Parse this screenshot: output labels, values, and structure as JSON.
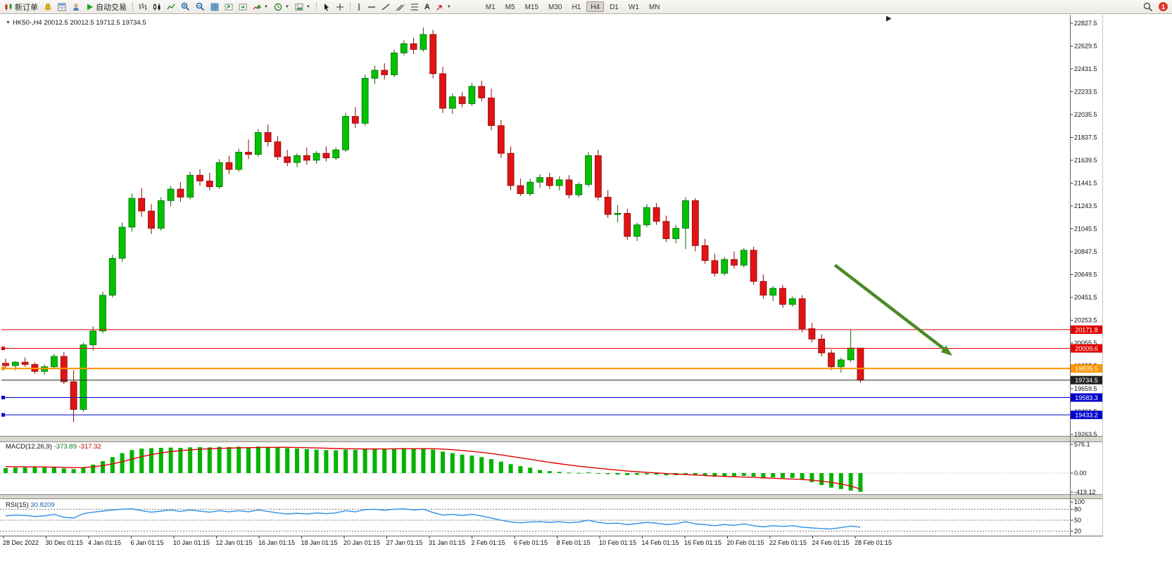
{
  "toolbar": {
    "new_order": "新订单",
    "auto_trading": "自动交易",
    "text_tool": "A",
    "timeframes": [
      "M1",
      "M5",
      "M15",
      "M30",
      "H1",
      "H4",
      "D1",
      "W1",
      "MN"
    ],
    "active_timeframe": "H4",
    "notification": "1"
  },
  "chart": {
    "symbol": "HK50-",
    "period": "H4",
    "ohlc_text": "20012.5 20012.5 19712.5 19734.5",
    "price_axis": [
      "22827.5",
      "22629.5",
      "22431.5",
      "22233.5",
      "22035.5",
      "21837.5",
      "21639.5",
      "21441.5",
      "21243.5",
      "21045.5",
      "20847.5",
      "20649.5",
      "20451.5",
      "20253.5",
      "20055.5",
      "19857.5",
      "19659.5",
      "19461.5",
      "19263.5"
    ],
    "price_lines": [
      {
        "price": 20171.8,
        "label": "20171.8",
        "color": "#e00000",
        "width": 1,
        "handle": false,
        "name": "resistance-line-red-1"
      },
      {
        "price": 20009.6,
        "label": "20009.6",
        "color": "#e00000",
        "width": 1,
        "handle": true,
        "name": "resistance-line-red-2"
      },
      {
        "price": 19835.5,
        "label": "19835.5",
        "color": "#ff9500",
        "width": 2,
        "handle": true,
        "name": "support-line-orange"
      },
      {
        "price": 19734.5,
        "label": "19734.5",
        "color": "#202020",
        "width": 1,
        "handle": false,
        "name": "current-price-line"
      },
      {
        "price": 19583.3,
        "label": "19583.3",
        "color": "#0000cc",
        "width": 1,
        "handle": true,
        "name": "support-line-blue-1"
      },
      {
        "price": 19433.2,
        "label": "19433.2",
        "color": "#0000cc",
        "width": 1,
        "handle": true,
        "name": "support-line-blue-2"
      }
    ],
    "time_axis": [
      "28 Dec 2022",
      "30 Dec 01:15",
      "4 Jan 01:15",
      "6 Jan 01:15",
      "10 Jan 01:15",
      "12 Jan 01:15",
      "16 Jan 01:15",
      "18 Jan 01:15",
      "20 Jan 01:15",
      "27 Jan 01:15",
      "31 Jan 01:15",
      "2 Feb 01:15",
      "6 Feb 01:15",
      "8 Feb 01:15",
      "10 Feb 01:15",
      "14 Feb 01:15",
      "16 Feb 01:15",
      "20 Feb 01:15",
      "22 Feb 01:15",
      "24 Feb 01:15",
      "28 Feb 01:15"
    ],
    "colors": {
      "bull": "#00C200",
      "bull_border": "#0a6a0a",
      "bear": "#E01414",
      "bear_border": "#8a0808",
      "macd_hist": "#00B400",
      "macd_signal": "#E00000",
      "rsi": "#2F8FE8",
      "arrow": "#4C8A28"
    },
    "candles": [
      [
        19880,
        19920,
        19840,
        19860
      ],
      [
        19860,
        19900,
        19820,
        19890
      ],
      [
        19890,
        19930,
        19850,
        19870
      ],
      [
        19870,
        19890,
        19790,
        19810
      ],
      [
        19810,
        19870,
        19780,
        19850
      ],
      [
        19850,
        19960,
        19830,
        19940
      ],
      [
        19940,
        19980,
        19700,
        19720
      ],
      [
        19720,
        19820,
        19370,
        19480
      ],
      [
        19480,
        20060,
        19460,
        20040
      ],
      [
        20040,
        20200,
        19990,
        20160
      ],
      [
        20160,
        20500,
        20140,
        20470
      ],
      [
        20470,
        20820,
        20450,
        20790
      ],
      [
        20790,
        21100,
        20760,
        21060
      ],
      [
        21060,
        21350,
        21020,
        21310
      ],
      [
        21310,
        21400,
        21150,
        21200
      ],
      [
        21200,
        21260,
        21000,
        21050
      ],
      [
        21050,
        21320,
        21030,
        21290
      ],
      [
        21290,
        21420,
        21240,
        21390
      ],
      [
        21390,
        21450,
        21280,
        21320
      ],
      [
        21320,
        21540,
        21300,
        21510
      ],
      [
        21510,
        21560,
        21420,
        21460
      ],
      [
        21460,
        21530,
        21380,
        21410
      ],
      [
        21410,
        21650,
        21390,
        21620
      ],
      [
        21620,
        21680,
        21520,
        21560
      ],
      [
        21560,
        21740,
        21540,
        21710
      ],
      [
        21710,
        21820,
        21650,
        21690
      ],
      [
        21690,
        21910,
        21670,
        21880
      ],
      [
        21880,
        21950,
        21760,
        21800
      ],
      [
        21800,
        21850,
        21640,
        21670
      ],
      [
        21670,
        21730,
        21590,
        21620
      ],
      [
        21620,
        21700,
        21580,
        21680
      ],
      [
        21680,
        21750,
        21600,
        21640
      ],
      [
        21640,
        21720,
        21610,
        21700
      ],
      [
        21700,
        21760,
        21630,
        21660
      ],
      [
        21660,
        21750,
        21640,
        21730
      ],
      [
        21730,
        22050,
        21710,
        22020
      ],
      [
        22020,
        22100,
        21920,
        21960
      ],
      [
        21960,
        22380,
        21940,
        22350
      ],
      [
        22350,
        22460,
        22300,
        22420
      ],
      [
        22420,
        22480,
        22340,
        22380
      ],
      [
        22380,
        22600,
        22360,
        22570
      ],
      [
        22570,
        22680,
        22550,
        22650
      ],
      [
        22650,
        22700,
        22560,
        22600
      ],
      [
        22600,
        22790,
        22580,
        22730
      ],
      [
        22730,
        22770,
        22350,
        22390
      ],
      [
        22390,
        22450,
        22050,
        22090
      ],
      [
        22090,
        22220,
        22040,
        22190
      ],
      [
        22190,
        22230,
        22100,
        22130
      ],
      [
        22130,
        22310,
        22110,
        22280
      ],
      [
        22280,
        22330,
        22150,
        22180
      ],
      [
        22180,
        22260,
        21900,
        21940
      ],
      [
        21940,
        21990,
        21660,
        21700
      ],
      [
        21700,
        21760,
        21380,
        21420
      ],
      [
        21420,
        21480,
        21330,
        21350
      ],
      [
        21350,
        21480,
        21330,
        21450
      ],
      [
        21450,
        21520,
        21400,
        21490
      ],
      [
        21490,
        21530,
        21390,
        21420
      ],
      [
        21420,
        21500,
        21380,
        21470
      ],
      [
        21470,
        21510,
        21310,
        21340
      ],
      [
        21340,
        21450,
        21320,
        21430
      ],
      [
        21430,
        21710,
        21410,
        21680
      ],
      [
        21680,
        21730,
        21290,
        21320
      ],
      [
        21320,
        21380,
        21140,
        21170
      ],
      [
        21170,
        21250,
        21100,
        21180
      ],
      [
        21180,
        21220,
        20950,
        20980
      ],
      [
        20980,
        21100,
        20940,
        21080
      ],
      [
        21080,
        21260,
        21060,
        21230
      ],
      [
        21230,
        21270,
        21080,
        21110
      ],
      [
        21110,
        21160,
        20930,
        20960
      ],
      [
        20960,
        21080,
        20920,
        21050
      ],
      [
        21050,
        21320,
        20870,
        21290
      ],
      [
        21290,
        21310,
        20850,
        20900
      ],
      [
        20900,
        20960,
        20740,
        20770
      ],
      [
        20770,
        20830,
        20630,
        20660
      ],
      [
        20660,
        20800,
        20640,
        20780
      ],
      [
        20780,
        20850,
        20700,
        20730
      ],
      [
        20730,
        20880,
        20710,
        20860
      ],
      [
        20860,
        20890,
        20560,
        20590
      ],
      [
        20590,
        20650,
        20440,
        20470
      ],
      [
        20470,
        20550,
        20420,
        20530
      ],
      [
        20530,
        20560,
        20360,
        20390
      ],
      [
        20390,
        20460,
        20370,
        20440
      ],
      [
        20440,
        20470,
        20150,
        20180
      ],
      [
        20180,
        20230,
        20060,
        20090
      ],
      [
        20090,
        20130,
        19940,
        19970
      ],
      [
        19970,
        20000,
        19820,
        19850
      ],
      [
        19850,
        19930,
        19800,
        19910
      ],
      [
        19910,
        20171,
        19890,
        20012
      ],
      [
        20012.5,
        20012.5,
        19712.5,
        19734.5
      ]
    ]
  },
  "macd": {
    "label": "MACD(12,26,9)",
    "value": "-373.89",
    "signal_value": "-317.32",
    "axis": [
      "576.1",
      "0.00",
      "-419.12"
    ],
    "histogram": [
      100,
      110,
      115,
      120,
      110,
      115,
      95,
      80,
      120,
      170,
      240,
      320,
      400,
      460,
      490,
      500,
      505,
      510,
      505,
      515,
      520,
      515,
      525,
      520,
      528,
      520,
      530,
      525,
      515,
      500,
      490,
      480,
      470,
      460,
      455,
      470,
      465,
      480,
      490,
      480,
      490,
      500,
      490,
      495,
      470,
      430,
      400,
      370,
      350,
      320,
      280,
      230,
      180,
      140,
      110,
      60,
      40,
      25,
      10,
      5,
      15,
      -5,
      -20,
      -30,
      -40,
      -35,
      -25,
      -30,
      -45,
      -40,
      -30,
      -45,
      -55,
      -70,
      -65,
      -60,
      -55,
      -70,
      -90,
      -85,
      -100,
      -95,
      -130,
      -180,
      -240,
      -290,
      -320,
      -350,
      -373.89
    ],
    "signal": [
      130,
      128,
      126,
      125,
      122,
      120,
      115,
      110,
      112,
      125,
      150,
      185,
      230,
      280,
      330,
      370,
      405,
      430,
      450,
      465,
      478,
      488,
      495,
      500,
      505,
      508,
      512,
      515,
      516,
      515,
      512,
      508,
      503,
      498,
      492,
      488,
      485,
      483,
      483,
      484,
      485,
      487,
      488,
      489,
      487,
      480,
      468,
      452,
      435,
      415,
      392,
      365,
      335,
      305,
      275,
      245,
      215,
      188,
      162,
      138,
      118,
      98,
      78,
      60,
      42,
      28,
      15,
      5,
      -8,
      -20,
      -28,
      -38,
      -48,
      -58,
      -66,
      -72,
      -78,
      -85,
      -95,
      -103,
      -112,
      -118,
      -128,
      -142,
      -160,
      -185,
      -215,
      -260,
      -317.32
    ]
  },
  "rsi": {
    "label": "RSI(15)",
    "value": "30.8209",
    "axis": [
      "100",
      "80",
      "50",
      "20"
    ],
    "levels": [
      80,
      50,
      20
    ],
    "values": [
      62,
      64,
      63,
      60,
      62,
      66,
      58,
      56,
      68,
      72,
      75,
      78,
      80,
      81,
      76,
      72,
      75,
      78,
      74,
      78,
      75,
      72,
      76,
      73,
      76,
      73,
      78,
      74,
      70,
      67,
      69,
      67,
      70,
      68,
      70,
      76,
      73,
      79,
      80,
      77,
      80,
      81,
      78,
      80,
      71,
      64,
      66,
      63,
      66,
      62,
      56,
      50,
      45,
      43,
      45,
      46,
      44,
      46,
      43,
      45,
      50,
      44,
      41,
      42,
      38,
      41,
      44,
      42,
      38,
      40,
      46,
      40,
      38,
      35,
      38,
      36,
      40,
      35,
      32,
      35,
      33,
      35,
      31,
      29,
      27,
      26,
      30,
      34,
      30.82
    ]
  }
}
